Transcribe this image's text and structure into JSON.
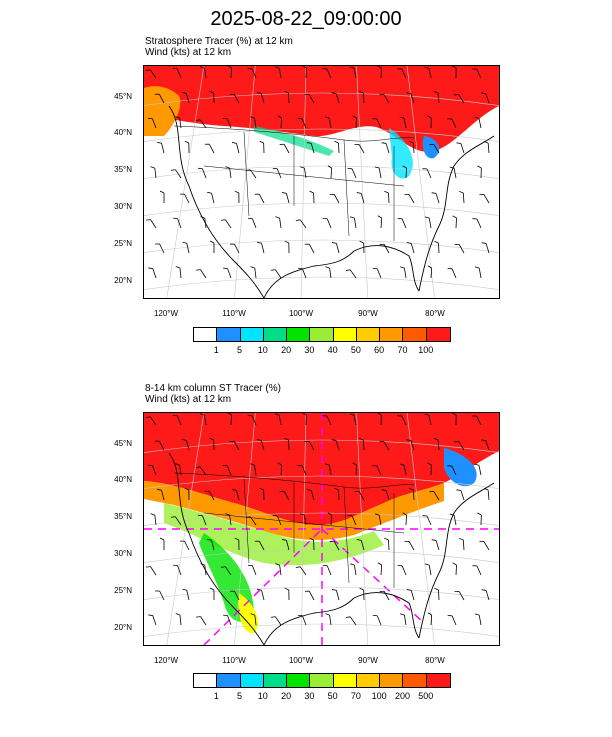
{
  "title": "2025-08-22_09:00:00",
  "panels": [
    {
      "title_line1": "Stratosphere Tracer   (%)     at   12 km",
      "title_line2": "Wind   (kts)     at   12 km",
      "lat_labels": [
        "45°N",
        "40°N",
        "35°N",
        "30°N",
        "25°N",
        "20°N"
      ],
      "lon_labels": [
        "120°W",
        "110°W",
        "100°W",
        "90°W",
        "80°W"
      ],
      "colorbar_labels": [
        "1",
        "5",
        "10",
        "20",
        "30",
        "40",
        "50",
        "60",
        "70",
        "100"
      ],
      "colors": [
        "#ffffff",
        "#1e90ff",
        "#00e5ff",
        "#00dd88",
        "#00e400",
        "#99ee33",
        "#ffff00",
        "#ffcc00",
        "#ff9900",
        "#ff5a00",
        "#ff1a1a"
      ]
    },
    {
      "title_line1": "8-14 km column ST Tracer   (%)",
      "title_line2": "Wind   (kts)     at   12 km",
      "lat_labels": [
        "45°N",
        "40°N",
        "35°N",
        "30°N",
        "25°N",
        "20°N"
      ],
      "lon_labels": [
        "120°W",
        "110°W",
        "100°W",
        "90°W",
        "80°W"
      ],
      "colorbar_labels": [
        "1",
        "5",
        "10",
        "20",
        "30",
        "50",
        "70",
        "100",
        "200",
        "500"
      ],
      "colors": [
        "#ffffff",
        "#1e90ff",
        "#00e5ff",
        "#00dd88",
        "#00e400",
        "#99ee33",
        "#ffff00",
        "#ffcc00",
        "#ff9900",
        "#ff5a00",
        "#ff1a1a"
      ]
    }
  ]
}
